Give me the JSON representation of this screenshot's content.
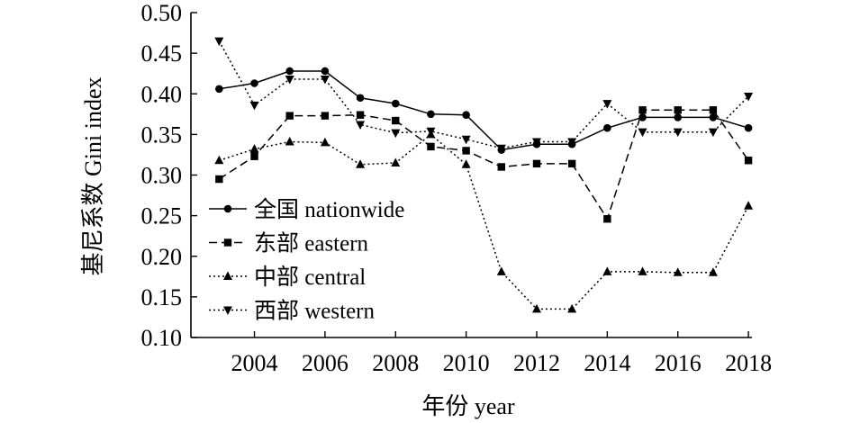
{
  "chart_data": {
    "type": "line",
    "xlabel": "年份 year",
    "ylabel": "基尼系数 Gini index",
    "xlim": [
      2002.2,
      2018.1
    ],
    "ylim": [
      0.1,
      0.5
    ],
    "xticks": [
      "2004",
      "2006",
      "2008",
      "2010",
      "2012",
      "2014",
      "2016",
      "2018"
    ],
    "yticks": [
      "0.10",
      "0.15",
      "0.20",
      "0.25",
      "0.30",
      "0.35",
      "0.40",
      "0.45",
      "0.50"
    ],
    "legend_position": "lower-left",
    "x": [
      2003,
      2004,
      2005,
      2006,
      2007,
      2008,
      2009,
      2010,
      2011,
      2012,
      2013,
      2014,
      2015,
      2016,
      2017,
      2018
    ],
    "series": [
      {
        "name": "全国 nationwide",
        "marker": "circle",
        "dash": "solid",
        "values": [
          0.406,
          0.413,
          0.428,
          0.428,
          0.395,
          0.388,
          0.375,
          0.374,
          0.331,
          0.338,
          0.338,
          0.358,
          0.371,
          0.371,
          0.371,
          0.358
        ]
      },
      {
        "name": "东部 eastern",
        "marker": "square",
        "dash": "dashed",
        "values": [
          0.295,
          0.323,
          0.373,
          0.373,
          0.374,
          0.367,
          0.335,
          0.33,
          0.31,
          0.314,
          0.314,
          0.246,
          0.38,
          0.38,
          0.38,
          0.318
        ]
      },
      {
        "name": "中部 central",
        "marker": "triangle-up",
        "dash": "dotted",
        "values": [
          0.318,
          0.332,
          0.341,
          0.34,
          0.313,
          0.315,
          0.35,
          0.313,
          0.181,
          0.135,
          0.135,
          0.181,
          0.181,
          0.18,
          0.18,
          0.262
        ]
      },
      {
        "name": "西部 western",
        "marker": "triangle-down",
        "dash": "dotted",
        "values": [
          0.465,
          0.386,
          0.418,
          0.418,
          0.362,
          0.352,
          0.354,
          0.344,
          0.333,
          0.341,
          0.341,
          0.388,
          0.353,
          0.353,
          0.353,
          0.397
        ]
      }
    ]
  }
}
